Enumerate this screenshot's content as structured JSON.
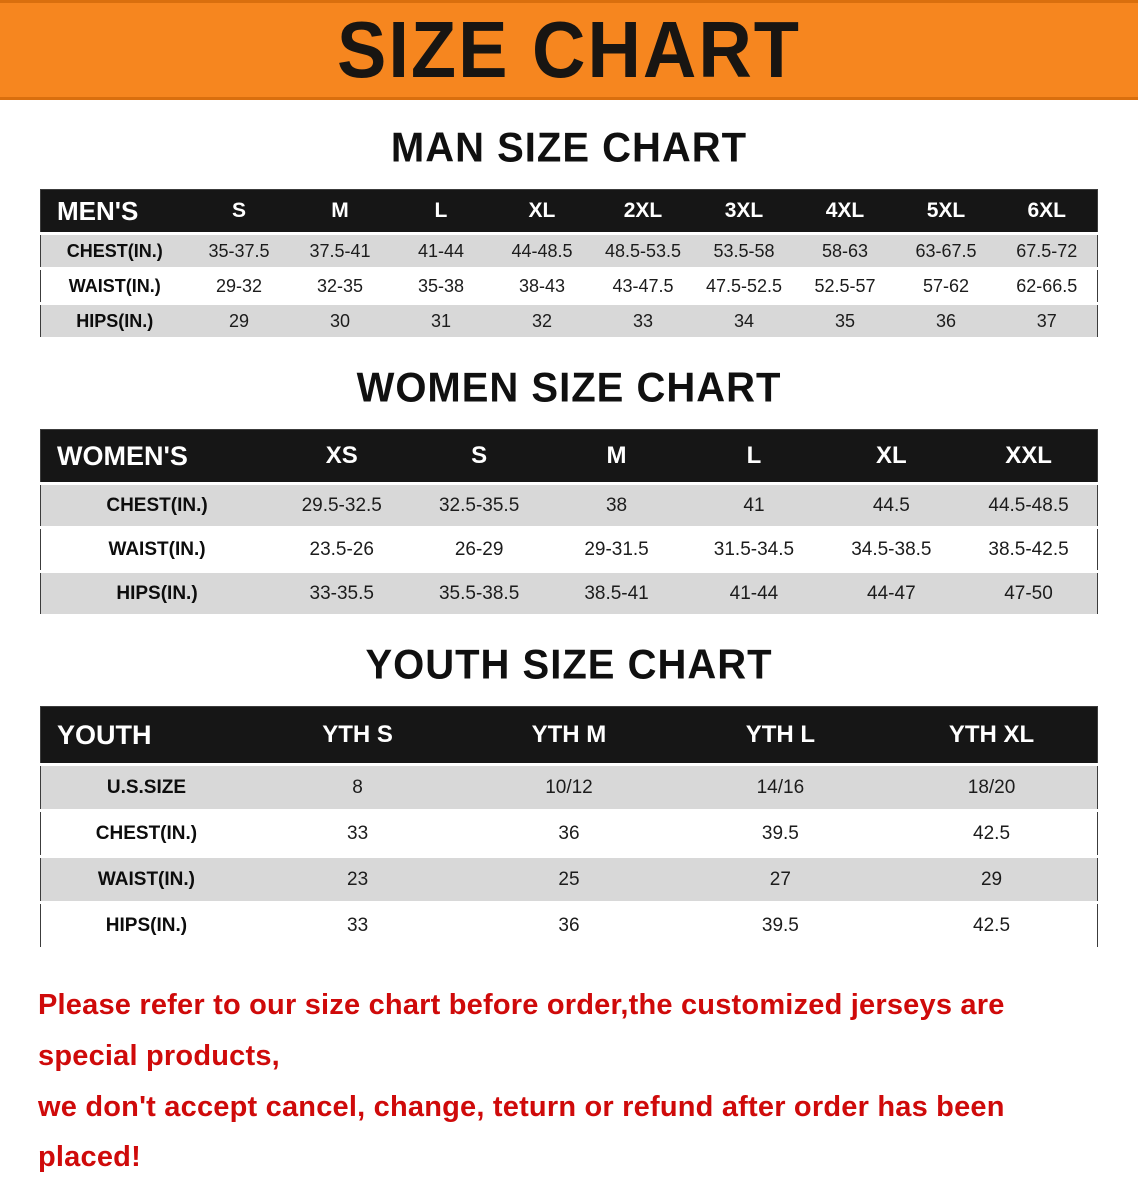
{
  "banner": {
    "title": "SIZE CHART",
    "background_color": "#f6861f"
  },
  "sections": [
    {
      "id": "men",
      "heading": "MAN SIZE CHART",
      "table": {
        "header": [
          "MEN'S",
          "S",
          "M",
          "L",
          "XL",
          "2XL",
          "3XL",
          "4XL",
          "5XL",
          "6XL"
        ],
        "rows": [
          [
            "CHEST(IN.)",
            "35-37.5",
            "37.5-41",
            "41-44",
            "44-48.5",
            "48.5-53.5",
            "53.5-58",
            "58-63",
            "63-67.5",
            "67.5-72"
          ],
          [
            "WAIST(IN.)",
            "29-32",
            "32-35",
            "35-38",
            "38-43",
            "43-47.5",
            "47.5-52.5",
            "52.5-57",
            "57-62",
            "62-66.5"
          ],
          [
            "HIPS(IN.)",
            "29",
            "30",
            "31",
            "32",
            "33",
            "34",
            "35",
            "36",
            "37"
          ]
        ]
      }
    },
    {
      "id": "women",
      "heading": "WOMEN SIZE CHART",
      "table": {
        "header": [
          "WOMEN'S",
          "XS",
          "S",
          "M",
          "L",
          "XL",
          "XXL"
        ],
        "rows": [
          [
            "CHEST(IN.)",
            "29.5-32.5",
            "32.5-35.5",
            "38",
            "41",
            "44.5",
            "44.5-48.5"
          ],
          [
            "WAIST(IN.)",
            "23.5-26",
            "26-29",
            "29-31.5",
            "31.5-34.5",
            "34.5-38.5",
            "38.5-42.5"
          ],
          [
            "HIPS(IN.)",
            "33-35.5",
            "35.5-38.5",
            "38.5-41",
            "41-44",
            "44-47",
            "47-50"
          ]
        ]
      }
    },
    {
      "id": "youth",
      "heading": "YOUTH SIZE CHART",
      "table": {
        "header": [
          "YOUTH",
          "YTH S",
          "YTH M",
          "YTH L",
          "YTH XL"
        ],
        "rows": [
          [
            "U.S.SIZE",
            "8",
            "10/12",
            "14/16",
            "18/20"
          ],
          [
            "CHEST(IN.)",
            "33",
            "36",
            "39.5",
            "42.5"
          ],
          [
            "WAIST(IN.)",
            "23",
            "25",
            "27",
            "29"
          ],
          [
            "HIPS(IN.)",
            "33",
            "36",
            "39.5",
            "42.5"
          ]
        ]
      }
    }
  ],
  "disclaimer": {
    "line1": "Please refer to our size chart before order,the customized jerseys are special products,",
    "line2": "we don't accept cancel, change, teturn or refund after order has been placed!",
    "color": "#cf0a0a"
  }
}
